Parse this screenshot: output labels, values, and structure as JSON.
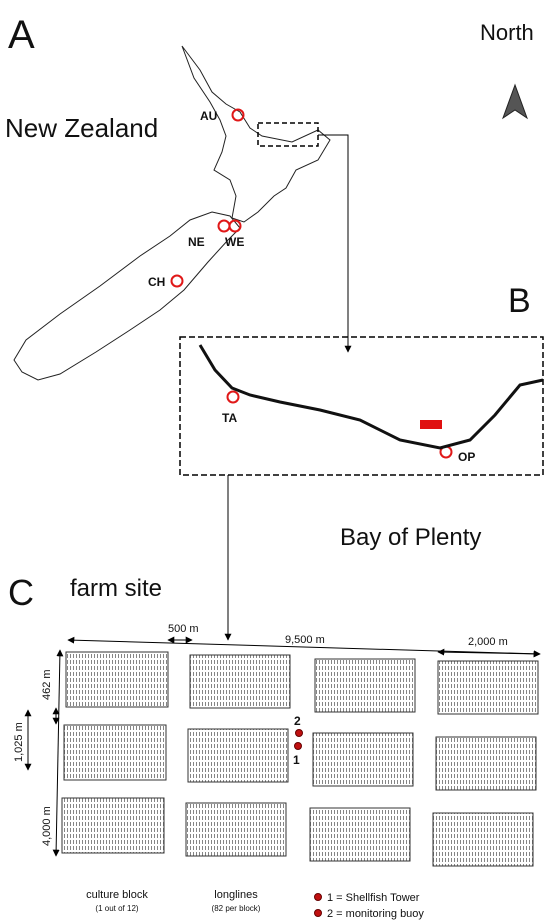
{
  "panel_a": {
    "label": "A",
    "north": "North",
    "country": "New Zealand",
    "sites": [
      "AU",
      "NE",
      "WE",
      "CH"
    ]
  },
  "panel_b": {
    "label": "B",
    "sites": [
      "TA",
      "OP"
    ],
    "region": "Bay of Plenty"
  },
  "panel_c": {
    "label": "C",
    "title": "farm site",
    "dimensions": [
      "500 m",
      "9,500 m",
      "2,000 m",
      "462 m",
      "1,025 m",
      "4,000 m"
    ],
    "markers": [
      "2",
      "1"
    ],
    "legend": {
      "block": "culture block",
      "block_note": "(1 out of 12)",
      "longlines": "longlines",
      "longlines_note": "(82 per block)",
      "items": [
        "1 = Shellfish Tower",
        "2 = monitoring buoy"
      ]
    }
  }
}
